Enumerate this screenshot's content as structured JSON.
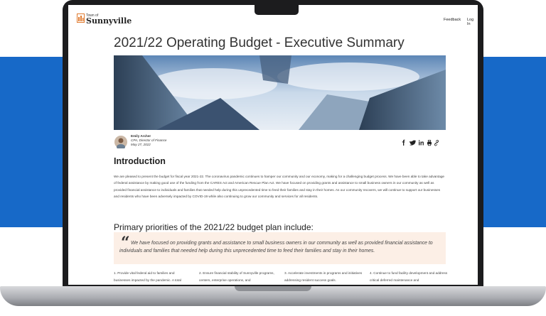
{
  "header": {
    "logo_small": "Town of",
    "logo_name": "Sunnyville",
    "nav": [
      "Feedback",
      "Log In"
    ]
  },
  "article": {
    "title": "2021/22 Operating Budget - Executive Summary",
    "author": {
      "name": "Emily Archer",
      "role": "CPA, Director of Finance",
      "date": "May 27, 2022"
    },
    "intro_heading": "Introduction",
    "intro_text": "We are pleased to present the budget for fiscal year 2021-22. The coronavirus pandemic continues to hamper our community and our economy, making for a challenging budget process.  We have been able to take advantage of federal assistance by making good use of the funding from the CARES Act and American Rescue Plan Act.  We have focused on providing grants and assistance to small business owners in our community as well as provided financial assistance to individuals and families that needed help during this unprecedented time to feed their families and stay in their homes.  As our community recovers, we will continue to support our businesses and residents who have been adversely impacted by COVID-19 while also continuing to grow our community and services for all residents.",
    "priorities_heading": "Primary priorities of the 2021/22 budget plan include:",
    "quote": "We have focused on providing grants and assistance to small business owners in our community as well as provided financial assistance to individuals and families that needed help during this unprecedented time to feed their families and stay in their homes.",
    "priorities": [
      "1. Provide vital federal aid to families and businesses impacted by the pandemic. A total",
      "2. Ensure financial stability of Sunnyville programs, centers, enterprise operations, and",
      "3. Accelerate investments in programs and initiatives addressing resident success goals.",
      "4. Continue to fund facility development and address critical deferred maintenance and"
    ]
  }
}
